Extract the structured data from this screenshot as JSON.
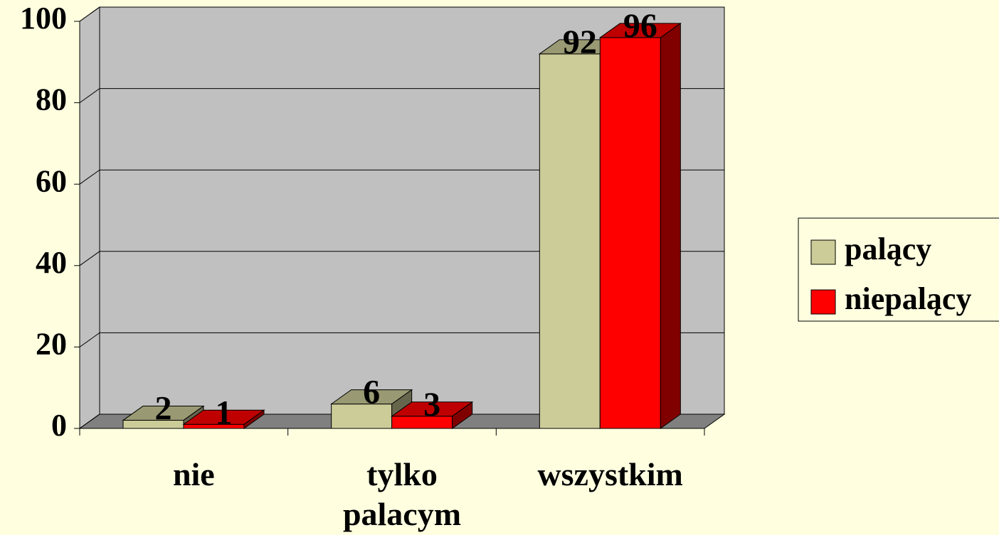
{
  "chart_data": {
    "type": "bar",
    "categories": [
      "nie",
      "tylko palacym",
      "wszystkim"
    ],
    "series": [
      {
        "name": "palący",
        "color": "#cccc99",
        "values": [
          2,
          6,
          92
        ]
      },
      {
        "name": "niepalący",
        "color": "#ff0000",
        "values": [
          1,
          3,
          96
        ]
      }
    ],
    "ylim": [
      0,
      100
    ],
    "yticks": [
      0,
      20,
      40,
      60,
      80,
      100
    ],
    "grid": true,
    "legend": "right"
  }
}
